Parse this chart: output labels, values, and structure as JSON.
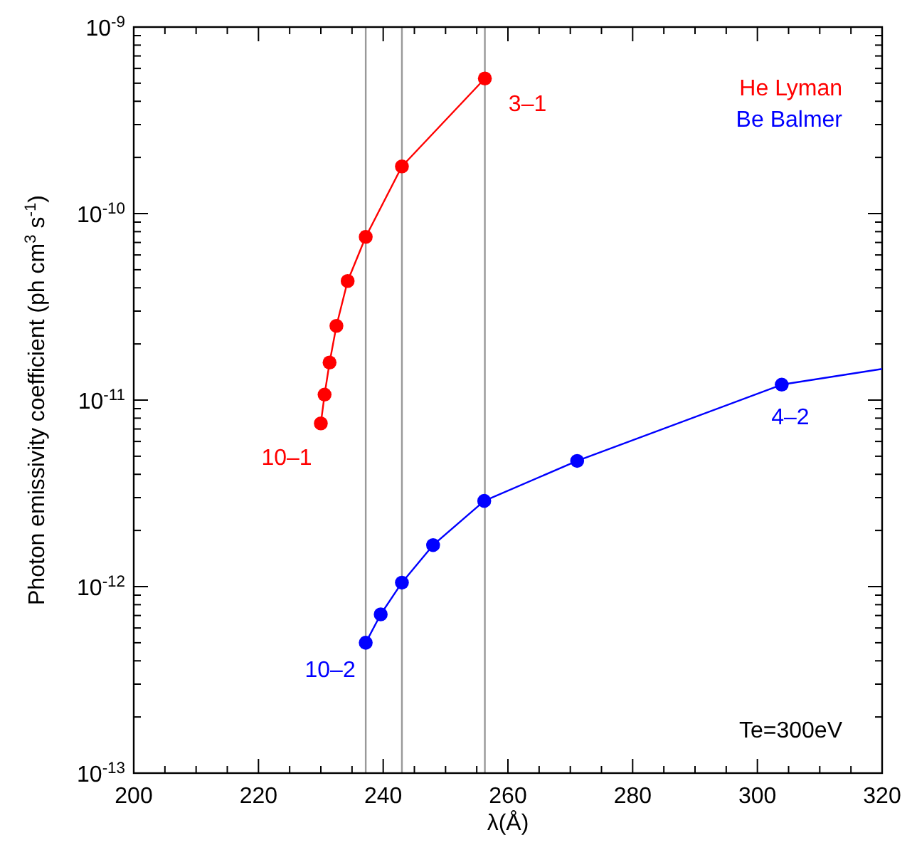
{
  "chart_data": {
    "type": "line",
    "xlabel": "λ(Å)",
    "ylabel": "Photon emissivity coefficient (ph cm$^{3}$ s$^{-1}$)",
    "log": "y",
    "marker": "circle",
    "line_style": "solid",
    "legend": "top right",
    "grid": false,
    "xlim": [
      200,
      320
    ],
    "ylim": [
      1e-13,
      1e-09
    ],
    "xticks": [
      200,
      {
        "value": 205,
        "label": null
      },
      {
        "value": 210,
        "label": null
      },
      {
        "value": 215,
        "label": null
      },
      220,
      {
        "value": 225,
        "label": null
      },
      {
        "value": 230,
        "label": null
      },
      {
        "value": 235,
        "label": null
      },
      240,
      {
        "value": 245,
        "label": null
      },
      {
        "value": 250,
        "label": null
      },
      {
        "value": 255,
        "label": null
      },
      260,
      {
        "value": 265,
        "label": null
      },
      {
        "value": 270,
        "label": null
      },
      {
        "value": 275,
        "label": null
      },
      280,
      {
        "value": 285,
        "label": null
      },
      {
        "value": 290,
        "label": null
      },
      {
        "value": 295,
        "label": null
      },
      300,
      {
        "value": 305,
        "label": null
      },
      {
        "value": 310,
        "label": null
      },
      {
        "value": 315,
        "label": null
      },
      320
    ],
    "yticks": [
      {
        "value": 1e-13,
        "label": "10$^{-13}$"
      },
      {
        "value": 2e-13,
        "label": null
      },
      {
        "value": 3e-13,
        "label": null
      },
      {
        "value": 4e-13,
        "label": null
      },
      {
        "value": 5e-13,
        "label": null
      },
      {
        "value": 6e-13,
        "label": null
      },
      {
        "value": 7e-13,
        "label": null
      },
      {
        "value": 8e-13,
        "label": null
      },
      {
        "value": 9e-13,
        "label": null
      },
      {
        "value": 1e-12,
        "label": "10$^{-12}$"
      },
      {
        "value": 2e-12,
        "label": null
      },
      {
        "value": 3e-12,
        "label": null
      },
      {
        "value": 4e-12,
        "label": null
      },
      {
        "value": 5e-12,
        "label": null
      },
      {
        "value": 6e-12,
        "label": null
      },
      {
        "value": 7e-12,
        "label": null
      },
      {
        "value": 8e-12,
        "label": null
      },
      {
        "value": 9e-12,
        "label": null
      },
      {
        "value": 1e-11,
        "label": "10$^{-11}$"
      },
      {
        "value": 2e-11,
        "label": null
      },
      {
        "value": 3e-11,
        "label": null
      },
      {
        "value": 4e-11,
        "label": null
      },
      {
        "value": 5e-11,
        "label": null
      },
      {
        "value": 6e-11,
        "label": null
      },
      {
        "value": 7e-11,
        "label": null
      },
      {
        "value": 8e-11,
        "label": null
      },
      {
        "value": 9e-11,
        "label": null
      },
      {
        "value": 1e-10,
        "label": "10$^{-10}$"
      },
      {
        "value": 2e-10,
        "label": null
      },
      {
        "value": 3e-10,
        "label": null
      },
      {
        "value": 4e-10,
        "label": null
      },
      {
        "value": 5e-10,
        "label": null
      },
      {
        "value": 6e-10,
        "label": null
      },
      {
        "value": 7e-10,
        "label": null
      },
      {
        "value": 8e-10,
        "label": null
      },
      {
        "value": 9e-10,
        "label": null
      },
      {
        "value": 1e-09,
        "label": "10$^{-9}$"
      }
    ],
    "series": [
      {
        "name": "He Lyman",
        "color": "#ff0000",
        "x": [
          256.3,
          243.0,
          237.2,
          234.3,
          232.5,
          231.4,
          230.6,
          230.0
        ],
        "values": [
          5.3e-10,
          1.79e-10,
          7.5e-11,
          4.35e-11,
          2.5e-11,
          1.59e-11,
          1.07e-11,
          7.5e-12
        ]
      },
      {
        "name": "Be Balmer",
        "color": "#0000ff",
        "x": [
          237.2,
          239.6,
          243.0,
          248.0,
          256.2,
          271.1,
          303.9
        ],
        "values": [
          5e-13,
          7.1e-13,
          1.05e-12,
          1.67e-12,
          2.88e-12,
          4.72e-12,
          1.21e-11
        ]
      },
      {
        "color": "#0000ff",
        "marker": "none",
        "x": [
          303.9,
          320
        ],
        "values": [
          1.21e-11,
          1.47e-11
        ]
      }
    ],
    "ref_lines": [
      {
        "axis": "x",
        "value": 237.2,
        "color": "#999999"
      },
      {
        "axis": "x",
        "value": 243.0,
        "color": "#999999"
      },
      {
        "axis": "x",
        "value": 256.3,
        "color": "#999999"
      }
    ],
    "annotations": [
      {
        "text": "3–1",
        "x": 256.3,
        "y": 5.3e-10
      },
      {
        "text": "10–1",
        "x": 230.0,
        "y": 7.5e-12
      },
      {
        "text": "10–2",
        "x": 237.2,
        "y": 5e-13
      },
      {
        "text": "4–2",
        "x": 303.9,
        "y": 1.21e-11
      },
      "Te=300eV"
    ]
  }
}
